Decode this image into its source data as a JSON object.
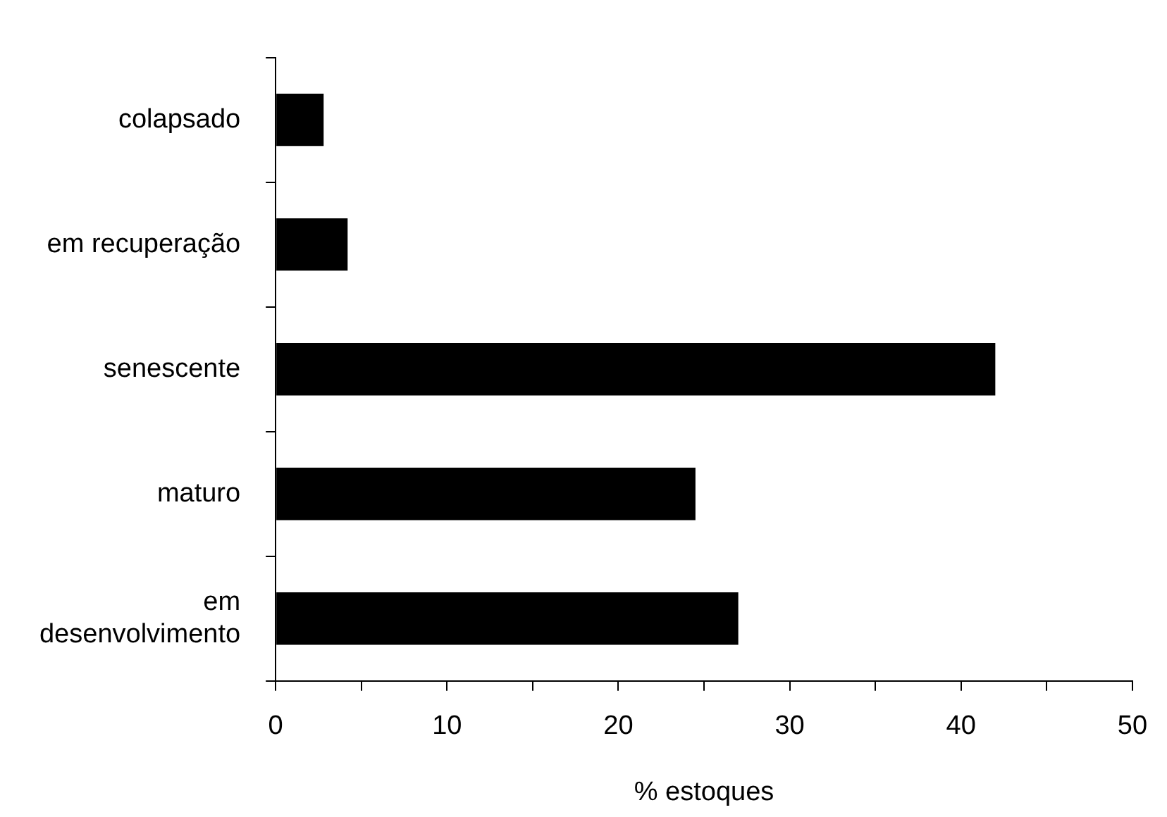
{
  "chart_data": {
    "type": "bar",
    "orientation": "horizontal",
    "xlabel": "% estoques",
    "categories": [
      "colapsado",
      "em recuperação",
      "senescente",
      "maturo",
      "em\ndesenvolvimento"
    ],
    "values": [
      2.8,
      4.2,
      42.0,
      24.5,
      27.0
    ],
    "color": "#000000",
    "xlim": [
      0,
      50
    ],
    "xticks": [
      0,
      {
        "value": 5,
        "label": null
      },
      10,
      {
        "value": 15,
        "label": null
      },
      20,
      {
        "value": 25,
        "label": null
      },
      30,
      {
        "value": 35,
        "label": null
      },
      40,
      {
        "value": 45,
        "label": null
      },
      50
    ],
    "grid": false,
    "legend": false
  }
}
